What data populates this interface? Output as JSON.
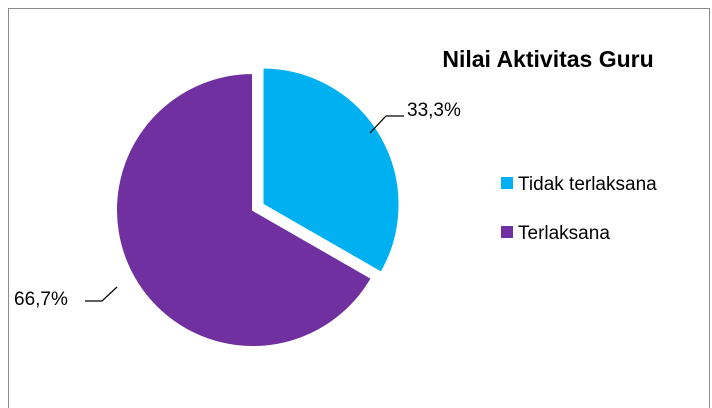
{
  "chart_data": {
    "type": "pie",
    "title": "Nilai Aktivitas Guru",
    "slices": [
      {
        "name": "Tidak terlaksana",
        "value": 33.3,
        "label": "33,3%",
        "color": "#00b0f0",
        "exploded": true
      },
      {
        "name": "Terlaksana",
        "value": 66.7,
        "label": "66,7%",
        "color": "#7030a0",
        "exploded": false
      }
    ],
    "legend": {
      "placement": "right",
      "entries": [
        "Tidak terlaksana",
        "Terlaksana"
      ]
    }
  }
}
